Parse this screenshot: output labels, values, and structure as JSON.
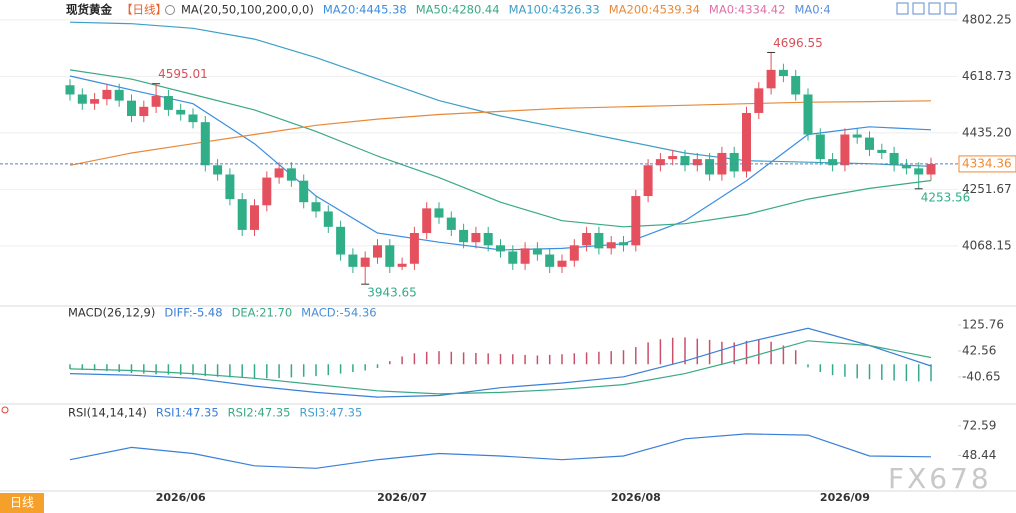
{
  "chart_data": [
    {
      "type": "candlestick",
      "title": "现货黄金",
      "period": "【日线】",
      "indicator": "MA(20,50,100,200,0,0)",
      "categories": [
        null,
        null,
        null,
        null,
        null,
        null,
        null,
        null,
        null,
        "2026/06",
        null,
        null,
        null,
        null,
        null,
        null,
        null,
        null,
        null,
        null,
        null,
        null,
        null,
        null,
        null,
        null,
        null,
        "2026/07",
        null,
        null,
        null,
        null,
        null,
        null,
        null,
        null,
        null,
        null,
        null,
        null,
        null,
        null,
        null,
        null,
        null,
        null,
        "2026/08",
        null,
        null,
        null,
        null,
        null,
        null,
        null,
        null,
        null,
        null,
        null,
        null,
        null,
        null,
        null,
        null,
        "2026/09",
        null,
        null,
        null,
        null,
        null,
        null,
        null
      ],
      "open": [
        4590,
        4560,
        4530,
        4545,
        4575,
        4540,
        4490,
        4520,
        4555,
        4510,
        4495,
        4470,
        4330,
        4300,
        4220,
        4120,
        4200,
        4290,
        4320,
        4280,
        4210,
        4180,
        4130,
        4040,
        4000,
        4030,
        4070,
        4000,
        4010,
        4110,
        4190,
        4160,
        4120,
        4080,
        4110,
        4070,
        4050,
        4010,
        4060,
        4040,
        4000,
        4020,
        4070,
        4110,
        4060,
        4080,
        4070,
        4230,
        4330,
        4350,
        4360,
        4330,
        4350,
        4300,
        4370,
        4310,
        4500,
        4580,
        4640,
        4620,
        4560,
        4430,
        4350,
        4330,
        4430,
        4420,
        4380,
        4370,
        4330,
        4320,
        4300
      ],
      "high": [
        4610,
        4580,
        4565,
        4595,
        4595,
        4560,
        4540,
        4595.01,
        4575,
        4530,
        4515,
        4490,
        4350,
        4320,
        4240,
        4220,
        4310,
        4340,
        4340,
        4300,
        4230,
        4200,
        4150,
        4060,
        4050,
        4090,
        4090,
        4030,
        4130,
        4210,
        4210,
        4180,
        4140,
        4130,
        4130,
        4090,
        4070,
        4080,
        4080,
        4060,
        4040,
        4090,
        4130,
        4130,
        4100,
        4100,
        4250,
        4350,
        4370,
        4380,
        4380,
        4370,
        4370,
        4390,
        4390,
        4520,
        4600,
        4696.55,
        4660,
        4640,
        4580,
        4450,
        4370,
        4450,
        4450,
        4440,
        4400,
        4390,
        4350,
        4340,
        4355
      ],
      "low": [
        4540,
        4510,
        4510,
        4525,
        4520,
        4470,
        4470,
        4500,
        4490,
        4475,
        4450,
        4310,
        4280,
        4200,
        4100,
        4100,
        4180,
        4270,
        4260,
        4190,
        4160,
        4110,
        4020,
        3980,
        3943.65,
        4010,
        3980,
        3990,
        3990,
        4090,
        4140,
        4100,
        4060,
        4060,
        4050,
        4030,
        3990,
        3990,
        4020,
        3980,
        3980,
        4000,
        4050,
        4040,
        4040,
        4050,
        4050,
        4210,
        4310,
        4330,
        4310,
        4310,
        4280,
        4280,
        4290,
        4290,
        4480,
        4560,
        4600,
        4540,
        4410,
        4330,
        4310,
        4310,
        4400,
        4360,
        4350,
        4310,
        4300,
        4253.56,
        4280
      ],
      "close": [
        4560,
        4530,
        4545,
        4575,
        4540,
        4490,
        4520,
        4555,
        4510,
        4495,
        4470,
        4330,
        4300,
        4220,
        4120,
        4200,
        4290,
        4320,
        4280,
        4210,
        4180,
        4130,
        4040,
        4000,
        4030,
        4070,
        4000,
        4010,
        4110,
        4190,
        4160,
        4120,
        4080,
        4110,
        4070,
        4050,
        4010,
        4060,
        4040,
        4000,
        4020,
        4070,
        4110,
        4060,
        4080,
        4070,
        4230,
        4330,
        4350,
        4360,
        4330,
        4350,
        4300,
        4370,
        4310,
        4500,
        4580,
        4640,
        4620,
        4560,
        4430,
        4350,
        4330,
        4430,
        4420,
        4380,
        4370,
        4330,
        4320,
        4300,
        4334.36
      ],
      "up_color": "#e5505e",
      "down_color": "#2fae88",
      "ylim": [
        3876,
        4828
      ],
      "yticks": [
        4802.25,
        4618.73,
        {
          "value": 4435.2,
          "label": "4435.20"
        },
        4251.67,
        4068.15
      ],
      "grid": true,
      "series": [
        {
          "legend": "MA20:4445.38",
          "color": "#3a8ee0",
          "x": [
            0,
            5,
            10,
            15,
            20,
            25,
            30,
            35,
            40,
            45,
            50,
            55,
            60,
            65,
            70
          ],
          "values": [
            4620,
            4575,
            4530,
            4400,
            4230,
            4110,
            4080,
            4055,
            4060,
            4075,
            4150,
            4280,
            4430,
            4455,
            4445.38
          ]
        },
        {
          "legend": "MA50:4280.44",
          "color": "#3aaa84",
          "x": [
            0,
            5,
            10,
            15,
            20,
            25,
            30,
            35,
            40,
            45,
            50,
            55,
            60,
            65,
            70
          ],
          "values": [
            4640,
            4610,
            4560,
            4510,
            4440,
            4360,
            4290,
            4210,
            4150,
            4130,
            4140,
            4170,
            4220,
            4255,
            4280.44
          ]
        },
        {
          "legend": "MA100:4326.33",
          "color": "#3c9fc6",
          "x": [
            0,
            5,
            10,
            15,
            20,
            25,
            30,
            35,
            40,
            45,
            50,
            55,
            60,
            65,
            70
          ],
          "values": [
            4795,
            4790,
            4775,
            4740,
            4680,
            4610,
            4540,
            4490,
            4450,
            4410,
            4370,
            4345,
            4340,
            4335,
            4326.33
          ]
        },
        {
          "legend": "MA200:4539.34",
          "color": "#e8893a",
          "x": [
            0,
            5,
            10,
            15,
            20,
            25,
            30,
            35,
            40,
            45,
            50,
            55,
            60,
            65,
            70
          ],
          "values": [
            4330,
            4370,
            4400,
            4430,
            4460,
            4480,
            4495,
            4505,
            4515,
            4520,
            4525,
            4530,
            4535,
            4537,
            4539.34
          ]
        }
      ],
      "extra_legend": [
        {
          "legend": "MA0:4334.42",
          "color": "#e070a8"
        },
        {
          "legend": "MA0:4",
          "color": "#5b8de0"
        }
      ]
    },
    {
      "type": "bar",
      "title": "MACD(26,12,9)",
      "legend": "MACD:-54.36",
      "color": "#4a8fd6",
      "up_color": "#c9506a",
      "down_color": "#35a98c",
      "values": [
        -15,
        -18,
        -20,
        -22,
        -25,
        -28,
        -30,
        -32,
        -33,
        -34,
        -35,
        -38,
        -40,
        -42,
        -44,
        -45,
        -45,
        -44,
        -42,
        -40,
        -38,
        -35,
        -30,
        -25,
        -20,
        -12,
        10,
        25,
        35,
        40,
        42,
        40,
        38,
        36,
        35,
        33,
        32,
        30,
        28,
        30,
        32,
        35,
        38,
        40,
        42,
        45,
        55,
        70,
        80,
        85,
        86,
        82,
        78,
        72,
        70,
        75,
        78,
        72,
        60,
        45,
        -10,
        -25,
        -35,
        -40,
        -45,
        -48,
        -50,
        -52,
        -54,
        -55,
        -54.36
      ],
      "ylim": [
        -124,
        180
      ],
      "yticks": [
        125.76,
        42.56,
        -40.65
      ],
      "series": [
        {
          "legend": "DIFF:-5.48",
          "color": "#3a7fd8",
          "x": [
            0,
            5,
            10,
            15,
            20,
            25,
            30,
            35,
            40,
            45,
            50,
            55,
            60,
            65,
            70
          ],
          "values": [
            -30,
            -35,
            -45,
            -70,
            -90,
            -105,
            -100,
            -75,
            -60,
            -40,
            10,
            70,
            115,
            60,
            -5.48
          ]
        },
        {
          "legend": "DEA:21.70",
          "color": "#3aaa84",
          "x": [
            0,
            5,
            10,
            15,
            20,
            25,
            30,
            35,
            40,
            45,
            50,
            55,
            60,
            65,
            70
          ],
          "values": [
            -15,
            -20,
            -30,
            -45,
            -65,
            -85,
            -95,
            -90,
            -80,
            -65,
            -30,
            20,
            75,
            60,
            21.7
          ]
        }
      ]
    },
    {
      "type": "line",
      "title": "RSI(14,14,14)",
      "ylim": [
        20.3,
        88.7
      ],
      "yticks": [
        72.59,
        48.44
      ],
      "series": [
        {
          "legend": "RSI1:47.35",
          "color": "#3a7fd8",
          "x": [
            0,
            5,
            10,
            15,
            20,
            25,
            30,
            35,
            40,
            45,
            50,
            55,
            60,
            65,
            70
          ],
          "values": [
            45,
            55,
            50,
            40,
            38,
            45,
            50,
            48,
            45,
            48,
            62,
            66,
            65,
            48,
            47.35
          ]
        },
        {
          "legend": "RSI2:47.35",
          "color": "#3aaa84"
        },
        {
          "legend": "RSI3:47.35",
          "color": "#4aa0d0"
        }
      ]
    }
  ],
  "ui": {
    "period_button": "日线",
    "watermark": "FX678"
  }
}
